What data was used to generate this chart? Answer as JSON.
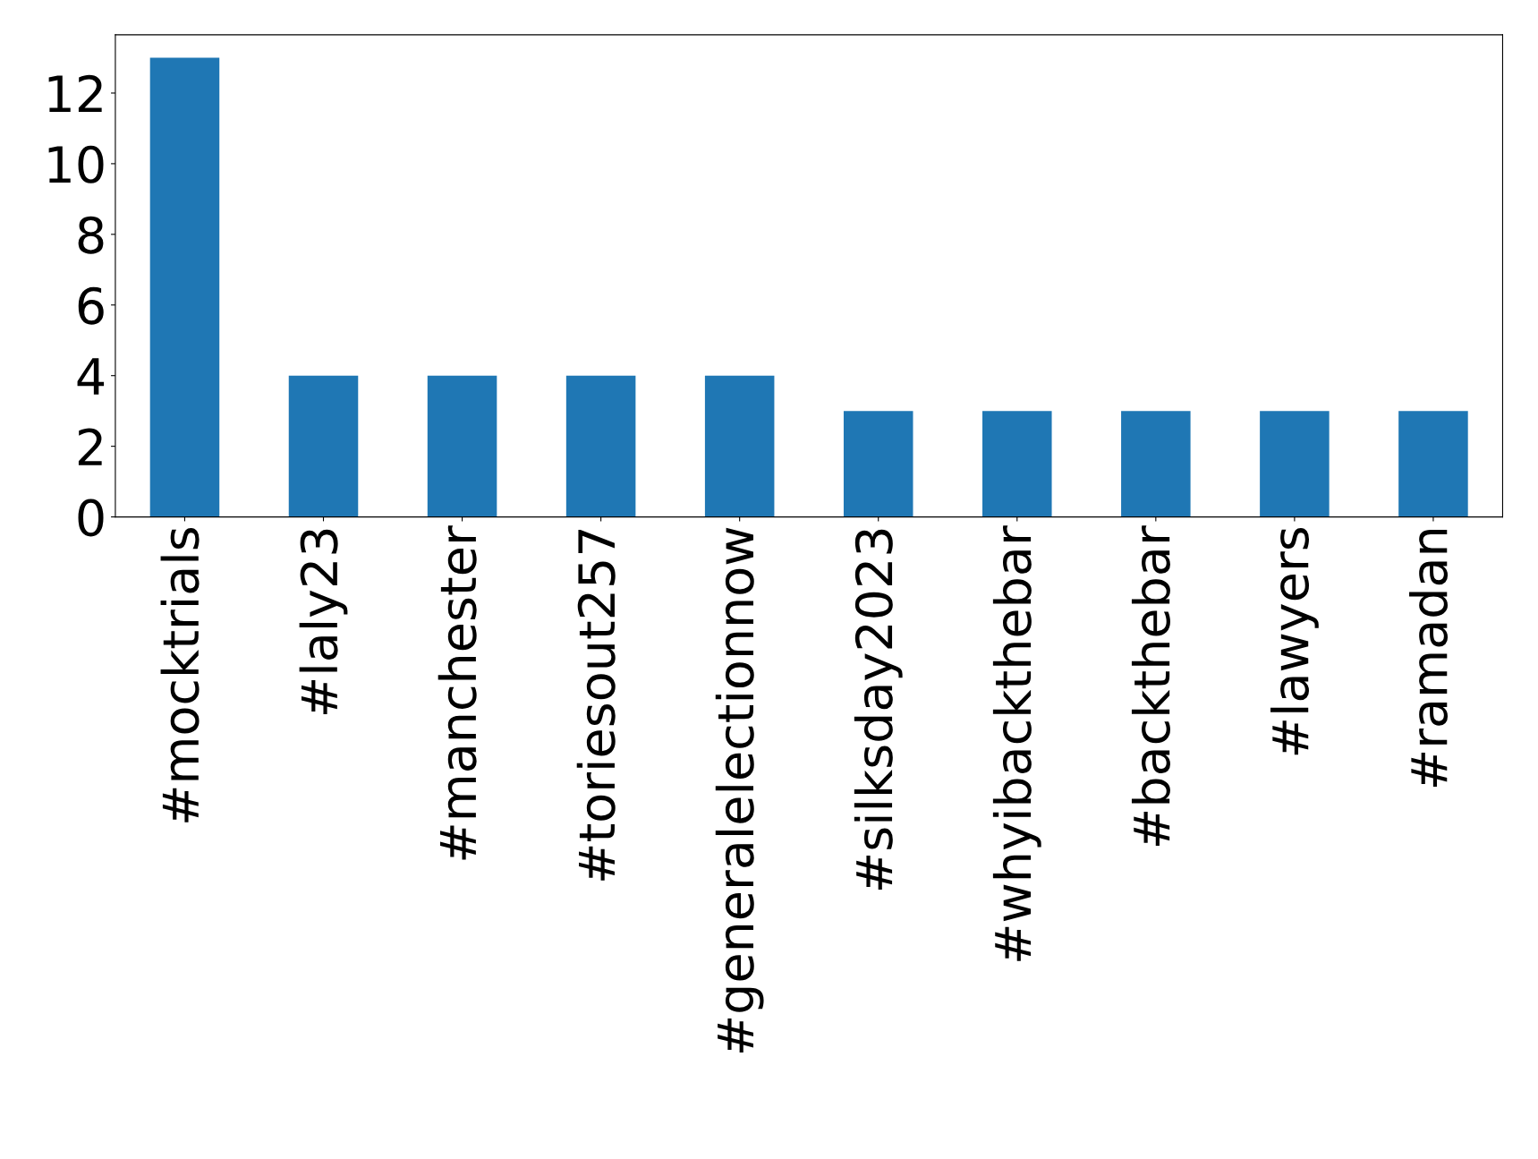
{
  "chart_data": {
    "type": "bar",
    "categories": [
      "#mocktrials",
      "#laly23",
      "#manchester",
      "#toriesout257",
      "#generalelectionnow",
      "#silksday2023",
      "#whyibackthebar",
      "#backthebar",
      "#lawyers",
      "#ramadan"
    ],
    "values": [
      13,
      4,
      4,
      4,
      4,
      3,
      3,
      3,
      3,
      3
    ],
    "color": "#1f77b4",
    "ylim": [
      0,
      13.65
    ],
    "yticks": [
      0,
      2,
      4,
      6,
      8,
      10,
      12
    ],
    "grid": false,
    "legend": false
  }
}
